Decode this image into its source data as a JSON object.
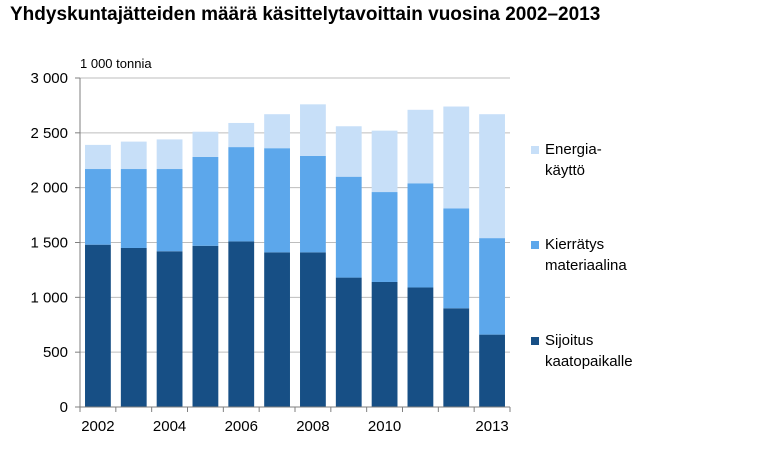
{
  "chart_data": {
    "type": "bar",
    "stacked": true,
    "title": "Yhdyskuntajätteiden määrä käsittelytavoittain vuosina 2002–2013",
    "unit_label": "1 000 tonnia",
    "x": [
      2002,
      2003,
      2004,
      2005,
      2006,
      2007,
      2008,
      2009,
      2010,
      2011,
      2012,
      2013
    ],
    "x_tick_labels": [
      {
        "x": 2002,
        "label": "2002"
      },
      {
        "x": 2004,
        "label": "2004"
      },
      {
        "x": 2006,
        "label": "2006"
      },
      {
        "x": 2008,
        "label": "2008"
      },
      {
        "x": 2010,
        "label": "2010"
      },
      {
        "x": 2013,
        "label": "2013"
      }
    ],
    "ylim": [
      0,
      3000
    ],
    "y_ticks": [
      {
        "value": 0,
        "label": "0"
      },
      {
        "value": 500,
        "label": "500"
      },
      {
        "value": 1000,
        "label": "1 000"
      },
      {
        "value": 1500,
        "label": "1 500"
      },
      {
        "value": 2000,
        "label": "2 000"
      },
      {
        "value": 2500,
        "label": "2 500"
      },
      {
        "value": 3000,
        "label": "3 000"
      }
    ],
    "grid": true,
    "legend_position": "right",
    "series": [
      {
        "name": "Sijoitus kaatopaikalle",
        "legend_lines": [
          "Sijoitus",
          "kaatopaikalle"
        ],
        "color": "#174f85",
        "values": [
          1480,
          1450,
          1420,
          1470,
          1510,
          1410,
          1410,
          1180,
          1140,
          1090,
          900,
          660
        ]
      },
      {
        "name": "Kierrätys materiaalina",
        "legend_lines": [
          "Kierrätys",
          "materiaalina"
        ],
        "color": "#5ca7eb",
        "values": [
          690,
          720,
          750,
          810,
          860,
          950,
          880,
          920,
          820,
          950,
          910,
          880
        ]
      },
      {
        "name": "Energiakäyttö",
        "legend_lines": [
          "Energia-",
          "käyttö"
        ],
        "color": "#c7dff8",
        "values": [
          220,
          250,
          270,
          230,
          220,
          310,
          470,
          460,
          560,
          670,
          930,
          1130
        ]
      }
    ]
  }
}
